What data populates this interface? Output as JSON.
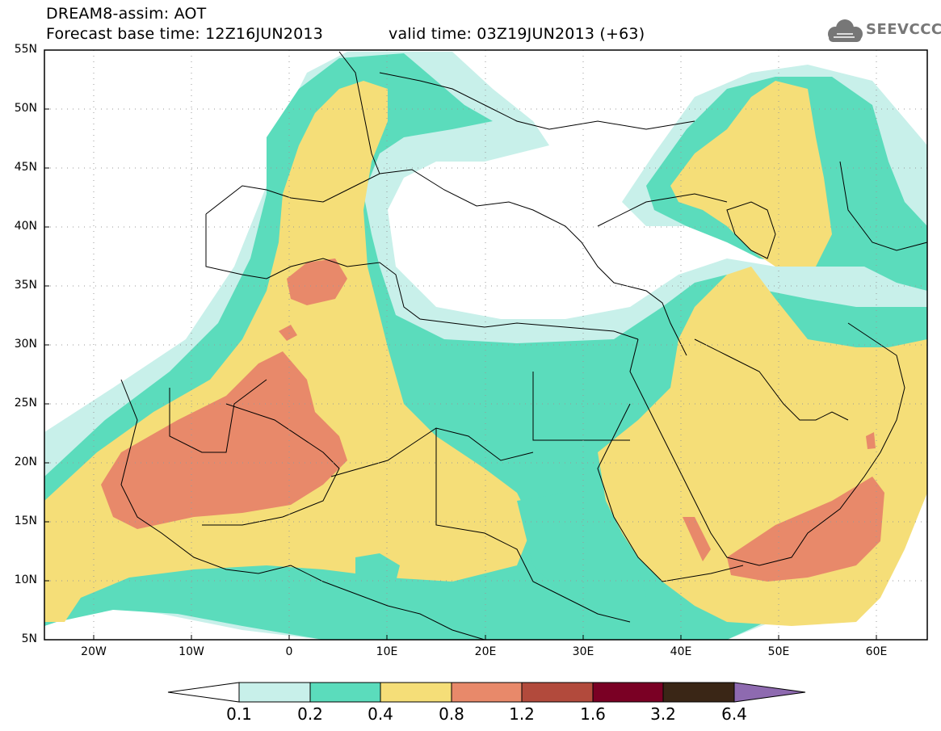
{
  "header": {
    "line1": "DREAM8-assim: AOT",
    "line2": "Forecast base time: 12Z16JUN2013",
    "line3": "valid time: 03Z19JUN2013 (+63)",
    "logo_text": "SEEVCCC"
  },
  "map": {
    "lat_labels": [
      "55N",
      "50N",
      "45N",
      "40N",
      "35N",
      "30N",
      "25N",
      "20N",
      "15N",
      "10N",
      "5N"
    ],
    "lon_labels": [
      "20W",
      "10W",
      "0",
      "10E",
      "20E",
      "30E",
      "40E",
      "50E",
      "60E"
    ],
    "colors": {
      "bin_0_1_0_2": "#c8f0ea",
      "bin_0_2_0_4": "#5bdcbc",
      "bin_0_4_0_8": "#f5de78",
      "bin_0_8_1_2": "#e8896a",
      "bin_1_2_1_6": "#b24a3c",
      "bin_1_6_3_2": "#7a0024",
      "bin_3_2_6_4": "#3a2616",
      "above_6_4": "#8e6ab0",
      "below_0_1": "#ffffff"
    }
  },
  "colorbar": {
    "labels": [
      "0.1",
      "0.2",
      "0.4",
      "0.8",
      "1.2",
      "1.6",
      "3.2",
      "6.4"
    ]
  }
}
